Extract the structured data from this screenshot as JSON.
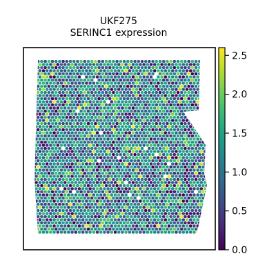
{
  "chart_data": {
    "type": "scatter",
    "title": "UKF275",
    "subtitle": "SERINC1 expression",
    "xlabel": "",
    "ylabel": "",
    "grid": false,
    "colorbar": {
      "colormap": "viridis",
      "position": "right",
      "range": [
        0.0,
        2.6
      ],
      "ticks": [
        0.0,
        0.5,
        1.0,
        1.5,
        2.0,
        2.5
      ],
      "tick_labels": [
        "0.0",
        "0.5",
        "1.0",
        "1.5",
        "2.0",
        "2.5"
      ]
    },
    "spots": {
      "layout": "hexagonal",
      "min_value": 0.0,
      "max_value": 2.6,
      "typical_range": [
        0.5,
        1.8
      ],
      "missing_color": "#ffffff"
    }
  }
}
